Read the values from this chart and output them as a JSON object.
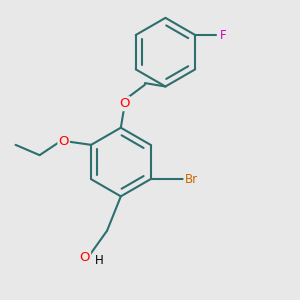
{
  "background_color": "#e8e8e8",
  "bond_color": "#2d6e6e",
  "atom_colors": {
    "O": "#ff0000",
    "Br": "#cc6600",
    "F": "#cc00cc"
  },
  "bond_width": 1.5,
  "font_size": 8.5,
  "figsize": [
    3.0,
    3.0
  ],
  "dpi": 100
}
